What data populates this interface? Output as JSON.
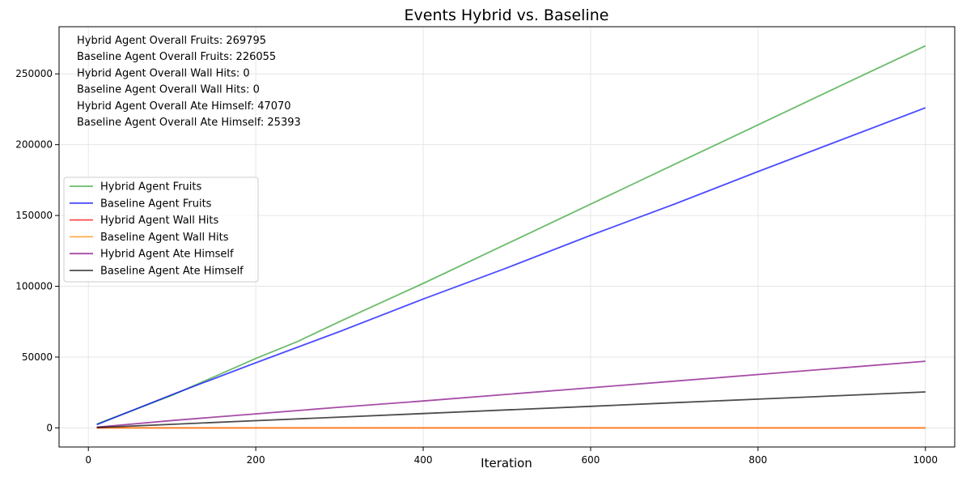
{
  "chart_data": {
    "type": "line",
    "title": "Events Hybrid vs. Baseline",
    "xlabel": "Iteration",
    "ylabel": "",
    "xlim": [
      -35,
      1035
    ],
    "ylim": [
      -13500,
      283300
    ],
    "xticks": [
      0,
      200,
      400,
      600,
      800,
      1000
    ],
    "yticks": [
      0,
      50000,
      100000,
      150000,
      200000,
      250000
    ],
    "grid": true,
    "legend_position": "center-left",
    "annotations": [
      "Hybrid Agent Overall Fruits: 269795",
      "Baseline Agent Overall Fruits: 226055",
      "Hybrid Agent Overall Wall Hits: 0",
      "Baseline Agent Overall Wall Hits: 0",
      "Hybrid Agent Overall Ate Himself: 47070",
      "Baseline Agent Overall Ate Himself: 25393"
    ],
    "series": [
      {
        "name": "Hybrid Agent Fruits",
        "color": "#2ca02c",
        "x": [
          10,
          100,
          150,
          200,
          250,
          300,
          400,
          500,
          600,
          700,
          800,
          900,
          1000
        ],
        "y": [
          2700,
          23000,
          36000,
          49000,
          61000,
          75000,
          102000,
          130000,
          158000,
          186000,
          214000,
          242000,
          269795
        ]
      },
      {
        "name": "Baseline Agent Fruits",
        "color": "#0000ff",
        "x": [
          10,
          100,
          200,
          300,
          400,
          500,
          600,
          700,
          800,
          900,
          1000
        ],
        "y": [
          2300,
          23500,
          46000,
          68000,
          91000,
          113000,
          136000,
          158000,
          181000,
          203500,
          226055
        ]
      },
      {
        "name": "Hybrid Agent Wall Hits",
        "color": "#ff0000",
        "x": [
          10,
          1000
        ],
        "y": [
          0,
          0
        ]
      },
      {
        "name": "Baseline Agent Wall Hits",
        "color": "#ff8c00",
        "x": [
          10,
          1000
        ],
        "y": [
          0,
          0
        ]
      },
      {
        "name": "Hybrid Agent Ate Himself",
        "color": "#800080",
        "x": [
          10,
          100,
          200,
          300,
          400,
          500,
          600,
          700,
          800,
          900,
          1000
        ],
        "y": [
          500,
          5200,
          9900,
          14600,
          19000,
          23700,
          28300,
          33000,
          37700,
          42400,
          47070
        ]
      },
      {
        "name": "Baseline Agent Ate Himself",
        "color": "#000000",
        "x": [
          10,
          100,
          200,
          300,
          400,
          500,
          600,
          700,
          800,
          900,
          1000
        ],
        "y": [
          250,
          2500,
          5100,
          7600,
          10100,
          12700,
          15200,
          17800,
          20300,
          22800,
          25393
        ]
      }
    ]
  }
}
